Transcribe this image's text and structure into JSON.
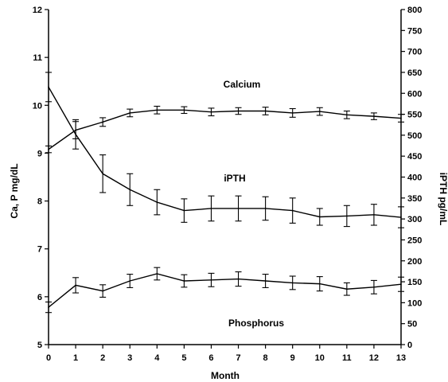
{
  "chart_data": {
    "type": "line",
    "x": [
      0,
      1,
      2,
      3,
      4,
      5,
      6,
      7,
      8,
      9,
      10,
      11,
      12,
      13
    ],
    "xlabel": "Month",
    "ylabel_left": "Ca, P mg/dL",
    "ylabel_right": "iPTH pg/mL",
    "ylim_left": [
      5,
      12
    ],
    "ylim_right": [
      0,
      800
    ],
    "xlim": [
      0,
      13
    ],
    "yticks_left": [
      5,
      6,
      7,
      8,
      9,
      10,
      11,
      12
    ],
    "yticks_right": [
      0,
      50,
      100,
      150,
      200,
      250,
      300,
      350,
      400,
      450,
      500,
      550,
      600,
      650,
      700,
      750,
      800
    ],
    "grid": false,
    "series": [
      {
        "name": "Calcium",
        "axis": "left",
        "values": [
          9.08,
          9.48,
          9.65,
          9.84,
          9.9,
          9.9,
          9.86,
          9.88,
          9.88,
          9.84,
          9.87,
          9.8,
          9.77,
          9.73
        ],
        "errors": [
          0.07,
          0.18,
          0.09,
          0.08,
          0.08,
          0.07,
          0.08,
          0.07,
          0.08,
          0.09,
          0.08,
          0.08,
          0.07,
          0.08
        ]
      },
      {
        "name": "iPTH",
        "axis": "right",
        "values": [
          615,
          502,
          408,
          370,
          340,
          320,
          325,
          325,
          325,
          320,
          305,
          307,
          310,
          304
        ],
        "errors": [
          35,
          35,
          45,
          38,
          30,
          28,
          30,
          30,
          28,
          30,
          20,
          25,
          25,
          25
        ]
      },
      {
        "name": "Phosphorus",
        "axis": "left",
        "values": [
          5.78,
          6.24,
          6.12,
          6.33,
          6.48,
          6.33,
          6.35,
          6.37,
          6.33,
          6.29,
          6.27,
          6.16,
          6.2,
          6.26
        ],
        "errors": [
          0.11,
          0.16,
          0.13,
          0.14,
          0.13,
          0.13,
          0.14,
          0.15,
          0.14,
          0.14,
          0.15,
          0.13,
          0.14,
          0.15
        ]
      }
    ],
    "annotations": [
      {
        "text": "Calcium",
        "series": "Calcium"
      },
      {
        "text": "iPTH",
        "series": "iPTH"
      },
      {
        "text": "Phosphorus",
        "series": "Phosphorus"
      }
    ],
    "line_color": "#000000"
  }
}
